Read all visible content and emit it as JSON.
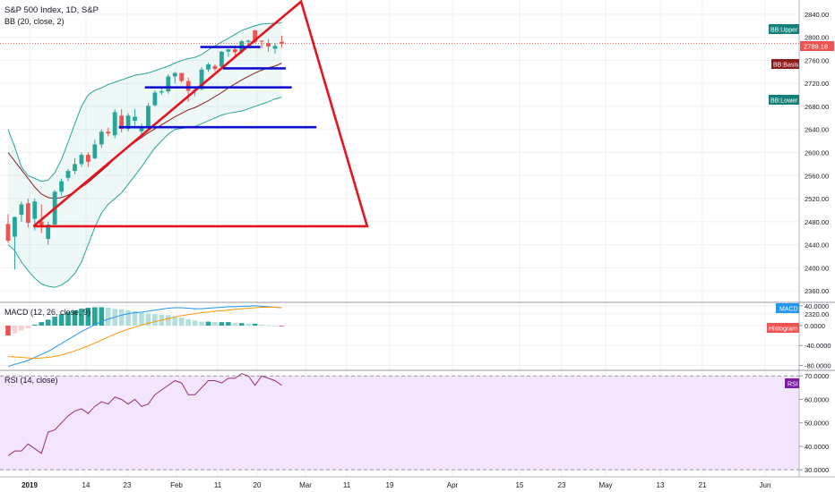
{
  "header": {
    "symbol": "S&P 500 Index, 1D, S&P",
    "bb_label": "BB (20, close, 2)",
    "macd_label": "MACD (12, 26, close, 9)",
    "rsi_label": "RSI (14, close)"
  },
  "badges": {
    "bb_upper": "BB:Upper",
    "bb_basis": "BB:Basis",
    "bb_lower": "BB:Lower",
    "last_price": "2789.18",
    "macd": "MACD",
    "histogram": "Histogram",
    "rsi": "RSI"
  },
  "colors": {
    "up_candle": "#26a69a",
    "down_candle": "#ef5350",
    "bb_band": "#26a69a",
    "bb_basis": "#8d1c1c",
    "annotation_red": "#e6141e",
    "annotation_blue": "#1010d0",
    "macd_line": "#2196f3",
    "signal_line": "#ff9800",
    "rsi_line": "#9c2a7a",
    "rsi_fill": "#f3e5fd"
  },
  "chart_data": {
    "type": "candlestick",
    "title": "S&P 500 Index, 1D, S&P",
    "x_axis": {
      "tick_labels": [
        "2019",
        "14",
        "23",
        "Feb",
        "11",
        "20",
        "Mar",
        "11",
        "19",
        "Apr",
        "15",
        "23",
        "May",
        "13",
        "21",
        "Jun"
      ]
    },
    "price_axis": {
      "range": [
        2340,
        2860
      ],
      "tick_labels": [
        "2840.00",
        "2800.00",
        "2760.00",
        "2720.00",
        "2680.00",
        "2640.00",
        "2600.00",
        "2560.00",
        "2520.00",
        "2480.00",
        "2440.00",
        "2400.00",
        "2360.00",
        "2320.00"
      ],
      "last_price": 2789.18
    },
    "candles": [
      {
        "o": 2476,
        "h": 2493,
        "l": 2443,
        "c": 2447
      },
      {
        "o": 2454,
        "h": 2489,
        "l": 2397,
        "c": 2488
      },
      {
        "o": 2492,
        "h": 2515,
        "l": 2480,
        "c": 2510
      },
      {
        "o": 2512,
        "h": 2520,
        "l": 2470,
        "c": 2478
      },
      {
        "o": 2485,
        "h": 2520,
        "l": 2465,
        "c": 2515
      },
      {
        "o": 2480,
        "h": 2510,
        "l": 2460,
        "c": 2470
      },
      {
        "o": 2450,
        "h": 2480,
        "l": 2440,
        "c": 2475
      },
      {
        "o": 2475,
        "h": 2535,
        "l": 2470,
        "c": 2532
      },
      {
        "o": 2532,
        "h": 2555,
        "l": 2525,
        "c": 2550
      },
      {
        "o": 2556,
        "h": 2572,
        "l": 2550,
        "c": 2568
      },
      {
        "o": 2568,
        "h": 2590,
        "l": 2562,
        "c": 2580
      },
      {
        "o": 2580,
        "h": 2600,
        "l": 2575,
        "c": 2596
      },
      {
        "o": 2596,
        "h": 2600,
        "l": 2575,
        "c": 2584
      },
      {
        "o": 2590,
        "h": 2622,
        "l": 2588,
        "c": 2614
      },
      {
        "o": 2614,
        "h": 2640,
        "l": 2608,
        "c": 2636
      },
      {
        "o": 2636,
        "h": 2643,
        "l": 2628,
        "c": 2633
      },
      {
        "o": 2630,
        "h": 2675,
        "l": 2625,
        "c": 2670
      },
      {
        "o": 2664,
        "h": 2675,
        "l": 2635,
        "c": 2641
      },
      {
        "o": 2641,
        "h": 2668,
        "l": 2637,
        "c": 2664
      },
      {
        "o": 2655,
        "h": 2676,
        "l": 2642,
        "c": 2662
      },
      {
        "o": 2637,
        "h": 2650,
        "l": 2630,
        "c": 2642
      },
      {
        "o": 2643,
        "h": 2686,
        "l": 2638,
        "c": 2681
      },
      {
        "o": 2682,
        "h": 2708,
        "l": 2680,
        "c": 2704
      },
      {
        "o": 2704,
        "h": 2712,
        "l": 2700,
        "c": 2706
      },
      {
        "o": 2706,
        "h": 2736,
        "l": 2702,
        "c": 2732
      },
      {
        "o": 2732,
        "h": 2740,
        "l": 2720,
        "c": 2738
      },
      {
        "o": 2738,
        "h": 2738,
        "l": 2721,
        "c": 2724
      },
      {
        "o": 2724,
        "h": 2730,
        "l": 2688,
        "c": 2707
      },
      {
        "o": 2708,
        "h": 2712,
        "l": 2698,
        "c": 2709
      },
      {
        "o": 2710,
        "h": 2748,
        "l": 2708,
        "c": 2744
      },
      {
        "o": 2744,
        "h": 2756,
        "l": 2740,
        "c": 2753
      },
      {
        "o": 2750,
        "h": 2753,
        "l": 2741,
        "c": 2745
      },
      {
        "o": 2749,
        "h": 2776,
        "l": 2748,
        "c": 2775
      },
      {
        "o": 2775,
        "h": 2780,
        "l": 2766,
        "c": 2779
      },
      {
        "o": 2779,
        "h": 2786,
        "l": 2768,
        "c": 2774
      },
      {
        "o": 2775,
        "h": 2795,
        "l": 2772,
        "c": 2793
      },
      {
        "o": 2792,
        "h": 2796,
        "l": 2783,
        "c": 2794
      },
      {
        "o": 2812,
        "h": 2813,
        "l": 2790,
        "c": 2792
      },
      {
        "o": 2794,
        "h": 2795,
        "l": 2781,
        "c": 2793
      },
      {
        "o": 2790,
        "h": 2797,
        "l": 2775,
        "c": 2784
      },
      {
        "o": 2780,
        "h": 2790,
        "l": 2772,
        "c": 2785
      },
      {
        "o": 2792,
        "h": 2803,
        "l": 2782,
        "c": 2789
      }
    ],
    "bollinger": {
      "upper": [
        2640,
        2610,
        2575,
        2560,
        2555,
        2550,
        2552,
        2565,
        2588,
        2618,
        2650,
        2680,
        2700,
        2708,
        2712,
        2718,
        2722,
        2726,
        2730,
        2734,
        2736,
        2738,
        2742,
        2746,
        2750,
        2755,
        2760,
        2763,
        2765,
        2770,
        2778,
        2785,
        2792,
        2798,
        2805,
        2812,
        2816,
        2820,
        2823,
        2824,
        2824,
        2825
      ],
      "basis": [
        2600,
        2585,
        2570,
        2555,
        2540,
        2528,
        2522,
        2520,
        2522,
        2526,
        2532,
        2540,
        2548,
        2558,
        2568,
        2578,
        2590,
        2600,
        2610,
        2618,
        2626,
        2634,
        2641,
        2648,
        2655,
        2662,
        2668,
        2674,
        2678,
        2684,
        2690,
        2697,
        2704,
        2712,
        2719,
        2726,
        2732,
        2738,
        2743,
        2747,
        2750,
        2755
      ],
      "lower": [
        2440,
        2430,
        2410,
        2395,
        2382,
        2372,
        2368,
        2366,
        2370,
        2378,
        2390,
        2410,
        2440,
        2470,
        2495,
        2510,
        2520,
        2530,
        2545,
        2560,
        2575,
        2592,
        2608,
        2620,
        2632,
        2640,
        2642,
        2643,
        2645,
        2650,
        2655,
        2660,
        2665,
        2668,
        2670,
        2672,
        2676,
        2680,
        2684,
        2688,
        2693,
        2696
      ]
    },
    "annotation_triangle": {
      "apex": [
        43.9,
        2862
      ],
      "left": [
        3.8,
        2472
      ],
      "right": [
        53.8,
        2472
      ],
      "note": "x in candle-index units"
    },
    "annotation_levels": [
      {
        "x1": 28.8,
        "x2": 37.8,
        "y": 2783
      },
      {
        "x1": 32.2,
        "x2": 41.6,
        "y": 2746
      },
      {
        "x1": 20.5,
        "x2": 42.5,
        "y": 2713
      },
      {
        "x1": 16.6,
        "x2": 46.2,
        "y": 2644
      }
    ],
    "macd_axis": {
      "range": [
        -90,
        45
      ],
      "tick_labels": [
        "40.0000",
        "0.0000",
        "-40.0000",
        "-80.0000"
      ]
    },
    "macd": {
      "macd": [
        -82,
        -78,
        -74,
        -70,
        -64,
        -58,
        -52,
        -44,
        -36,
        -28,
        -20,
        -12,
        -5,
        2,
        8,
        13,
        17,
        21,
        24,
        26,
        27,
        29,
        31,
        33,
        35,
        36,
        36,
        35,
        34,
        34,
        35,
        36,
        37,
        38,
        38,
        39,
        39,
        40,
        39,
        38,
        37,
        36
      ],
      "signal": [
        -62,
        -63,
        -64,
        -65,
        -66,
        -65,
        -64,
        -62,
        -59,
        -55,
        -51,
        -46,
        -41,
        -35,
        -29,
        -23,
        -17,
        -12,
        -7,
        -3,
        1,
        5,
        8,
        11,
        14,
        17,
        20,
        22,
        24,
        26,
        27,
        29,
        30,
        31,
        33,
        34,
        35,
        36,
        37,
        37,
        37,
        36
      ],
      "histogram": [
        -20,
        -15,
        -10,
        -5,
        2,
        7,
        12,
        18,
        23,
        27,
        31,
        34,
        36,
        37,
        37,
        36,
        34,
        33,
        31,
        29,
        26,
        24,
        23,
        22,
        21,
        19,
        16,
        13,
        10,
        8,
        8,
        7,
        7,
        7,
        5,
        5,
        4,
        4,
        2,
        1,
        0,
        -1
      ]
    },
    "rsi_axis": {
      "range": [
        27,
        72
      ],
      "tick_labels": [
        "70.0000",
        "60.0000",
        "50.0000",
        "40.0000",
        "30.0000"
      ],
      "bands": [
        70,
        30
      ]
    },
    "rsi": [
      36,
      38,
      38,
      41,
      39,
      37,
      46,
      47,
      50,
      53,
      55,
      56,
      54,
      57,
      59,
      58,
      61,
      60,
      58,
      60,
      57,
      58,
      62,
      64,
      66,
      68,
      67,
      62,
      62,
      65,
      68,
      68,
      67,
      69,
      69,
      71,
      70,
      66,
      70,
      69,
      68,
      66
    ]
  }
}
